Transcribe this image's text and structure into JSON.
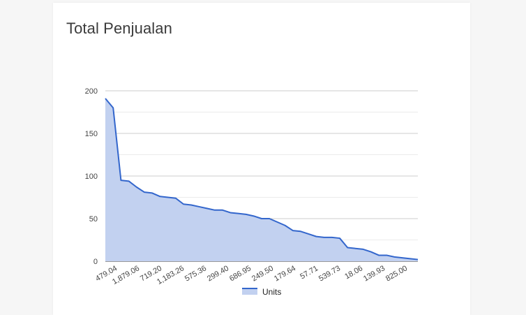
{
  "card": {
    "title": "Total Penjualan"
  },
  "colors": {
    "line": "#3366cc",
    "area": "#c2d1f0",
    "grid_major": "#cccccc",
    "grid_minor": "#ebebeb"
  },
  "chart_data": {
    "type": "area",
    "x_tick_labels": [
      "479.04",
      "1,879.06",
      "719.20",
      "1,183.26",
      "575.36",
      "299.40",
      "686.95",
      "249.50",
      "179.64",
      "57.71",
      "539.73",
      "18.06",
      "139.93",
      "825.00"
    ],
    "series": [
      {
        "name": "Units",
        "values": [
          191,
          180,
          95,
          94,
          87,
          81,
          80,
          76,
          75,
          74,
          67,
          66,
          64,
          62,
          60,
          60,
          57,
          56,
          55,
          53,
          50,
          50,
          46,
          42,
          36,
          35,
          32,
          29,
          28,
          28,
          27,
          16,
          15,
          14,
          11,
          7,
          7,
          5,
          4,
          3,
          2
        ]
      }
    ],
    "ylim": [
      0,
      200
    ],
    "y_ticks": [
      0,
      50,
      100,
      150,
      200
    ],
    "grid": true,
    "legend": "bottom"
  }
}
